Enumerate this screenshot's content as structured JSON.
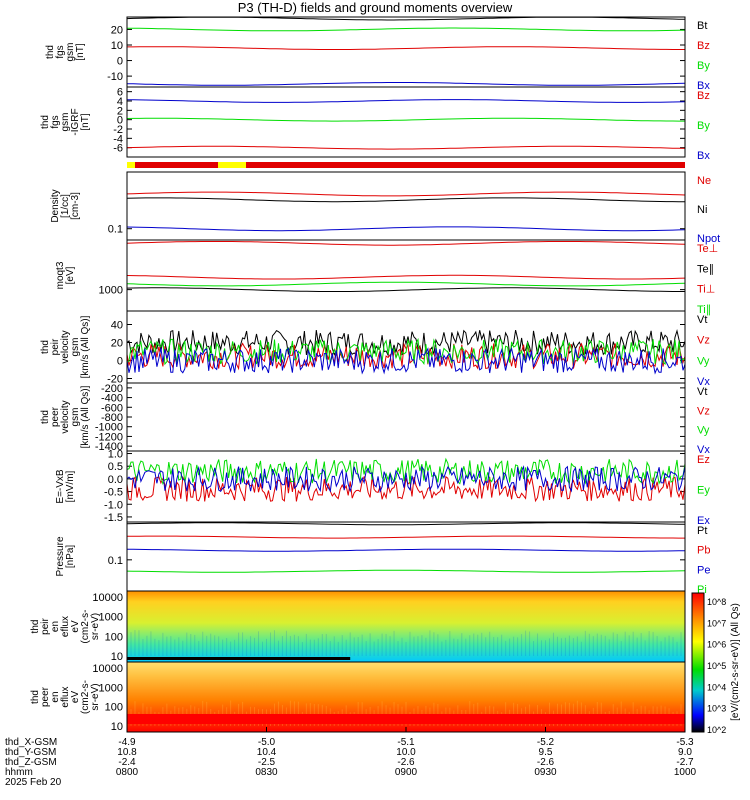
{
  "title": "P3 (TH-D) fields and ground moments overview",
  "colors": {
    "black": "#000000",
    "red": "#e00000",
    "green": "#00dd00",
    "blue": "#0000cc",
    "yellow": "#ffff00"
  },
  "footer": {
    "row_labels": [
      "thd_X-GSM",
      "thd_Y-GSM",
      "thd_Z-GSM",
      "hhmm",
      "2025 Feb 20"
    ],
    "columns": [
      {
        "x": "-4.9",
        "y": "10.8",
        "z": "-2.4",
        "time": "0800"
      },
      {
        "x": "-5.0",
        "y": "10.4",
        "z": "-2.5",
        "time": "0830"
      },
      {
        "x": "-5.1",
        "y": "10.0",
        "z": "-2.6",
        "time": "0900"
      },
      {
        "x": "-5.2",
        "y": "9.5",
        "z": "-2.6",
        "time": "0930"
      },
      {
        "x": "-5.3",
        "y": "9.0",
        "z": "-2.7",
        "time": "1000"
      }
    ]
  },
  "colorbar_label": "[eV/(cm2-s-sr-eV)] (All Qs)",
  "colorbar_ticks": [
    "10^8",
    "10^7",
    "10^6",
    "10^5",
    "10^4",
    "10^3",
    "10^2"
  ],
  "chart_data": [
    {
      "type": "line",
      "ylabel": [
        "thd",
        "fgs",
        "gsm",
        "[nT]"
      ],
      "yticks": [
        "20",
        "10",
        "0",
        "-10"
      ],
      "ylim": [
        -17,
        28
      ],
      "series": [
        {
          "name": "Bt",
          "color": "black",
          "level": 27
        },
        {
          "name": "Bz",
          "color": "red",
          "level": 8
        },
        {
          "name": "By",
          "color": "green",
          "level": 20
        },
        {
          "name": "Bx",
          "color": "blue",
          "level": -15
        }
      ]
    },
    {
      "type": "line",
      "ylabel": [
        "thd",
        "fgs",
        "gsm",
        "-IGRF",
        "[nT]"
      ],
      "yticks": [
        "6",
        "4",
        "2",
        "0",
        "-2",
        "-4",
        "-6"
      ],
      "ylim": [
        -8,
        7
      ],
      "series": [
        {
          "name": "Bz",
          "color": "red",
          "level": -6
        },
        {
          "name": "By",
          "color": "green",
          "level": 0
        },
        {
          "name": "Bx",
          "color": "blue",
          "level": 4
        }
      ]
    },
    {
      "type": "line",
      "ylabel": [
        "Density",
        "[1/cc]",
        "[cm-3]"
      ],
      "yticks": [
        "0.1"
      ],
      "ylim": [
        0.07,
        0.6
      ],
      "series": [
        {
          "name": "Ne",
          "color": "red",
          "level": 0.3
        },
        {
          "name": "Ni",
          "color": "black",
          "level": 0.25
        },
        {
          "name": "Npot",
          "color": "blue",
          "level": 0.1
        }
      ]
    },
    {
      "type": "line",
      "ylabel": [
        "moqt3",
        "[eV]"
      ],
      "yticks": [
        "1000"
      ],
      "ylim": [
        500,
        5000
      ],
      "series": [
        {
          "name": "Te⊥",
          "color": "red",
          "level": 4500
        },
        {
          "name": "Te∥",
          "color": "black",
          "level": 1000
        },
        {
          "name": "Ti⊥",
          "color": "red",
          "level": 1500
        },
        {
          "name": "Ti∥",
          "color": "green",
          "level": 1200
        }
      ]
    },
    {
      "type": "line",
      "ylabel": [
        "thd",
        "peir",
        "velocity",
        "gsm",
        "[km/s (All Qs)]"
      ],
      "yticks": [
        "40",
        "20",
        "0",
        "-20"
      ],
      "ylim": [
        -25,
        55
      ],
      "series": [
        {
          "name": "Vt",
          "color": "black",
          "level": 20
        },
        {
          "name": "Vz",
          "color": "red",
          "level": 5
        },
        {
          "name": "Vy",
          "color": "green",
          "level": 10
        },
        {
          "name": "Vx",
          "color": "blue",
          "level": 0
        }
      ]
    },
    {
      "type": "line",
      "ylabel": [
        "thd",
        "peer",
        "velocity",
        "gsm",
        "[km/s (All Qs)]"
      ],
      "yticks": [
        "-200",
        "-400",
        "-600",
        "-800",
        "-1000",
        "-1200",
        "-1400"
      ],
      "ylim": [
        -1500,
        -100
      ],
      "series": [
        {
          "name": "Vt",
          "color": "black"
        },
        {
          "name": "Vz",
          "color": "red"
        },
        {
          "name": "Vy",
          "color": "green"
        },
        {
          "name": "Vx",
          "color": "blue"
        }
      ]
    },
    {
      "type": "line",
      "ylabel": [
        "E=-VxB",
        "[mV/m]"
      ],
      "yticks": [
        "1.0",
        "0.5",
        "0.0",
        "-0.5",
        "-1.0",
        "-1.5"
      ],
      "ylim": [
        -1.7,
        1.1
      ],
      "series": [
        {
          "name": "Ez",
          "color": "red",
          "level": -0.4
        },
        {
          "name": "Ey",
          "color": "green",
          "level": 0.3
        },
        {
          "name": "Ex",
          "color": "blue",
          "level": 0.0
        }
      ]
    },
    {
      "type": "line",
      "ylabel": [
        "Pressure",
        "[nPa]"
      ],
      "yticks": [
        "0.1"
      ],
      "ylim": [
        0.015,
        1
      ],
      "series": [
        {
          "name": "Pt",
          "color": "black",
          "level": 0.9
        },
        {
          "name": "Pb",
          "color": "red",
          "level": 0.4
        },
        {
          "name": "Pe",
          "color": "blue",
          "level": 0.18
        },
        {
          "name": "Pi",
          "color": "green",
          "level": 0.05
        }
      ]
    },
    {
      "type": "heatmap",
      "ylabel": [
        "thd",
        "peir",
        "en",
        "eflux",
        "eV",
        "(cm2-s-",
        "sr-eV)"
      ],
      "yticks": [
        "10000",
        "1000",
        "100",
        "10"
      ],
      "ylim": [
        5,
        20000
      ]
    },
    {
      "type": "heatmap",
      "ylabel": [
        "thd",
        "peer",
        "en",
        "eflux",
        "eV",
        "(cm2-s-",
        "sr-eV)"
      ],
      "yticks": [
        "10000",
        "1000",
        "100",
        "10"
      ],
      "ylim": [
        5,
        20000
      ]
    }
  ]
}
